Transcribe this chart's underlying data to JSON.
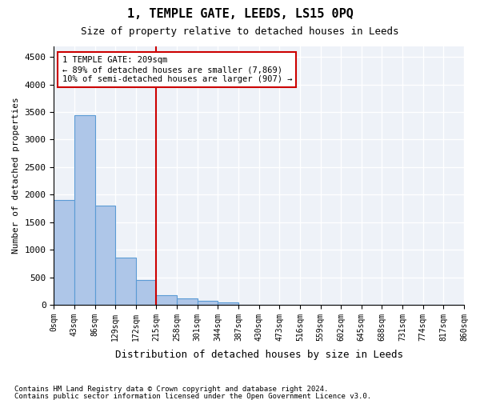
{
  "title": "1, TEMPLE GATE, LEEDS, LS15 0PQ",
  "subtitle": "Size of property relative to detached houses in Leeds",
  "xlabel": "Distribution of detached houses by size in Leeds",
  "ylabel": "Number of detached properties",
  "bar_color": "#aec6e8",
  "bar_edge_color": "#5b9bd5",
  "vline_color": "#cc0000",
  "vline_x": 5,
  "annotation_text": "1 TEMPLE GATE: 209sqm\n← 89% of detached houses are smaller (7,869)\n10% of semi-detached houses are larger (907) →",
  "categories": [
    "0sqm",
    "43sqm",
    "86sqm",
    "129sqm",
    "172sqm",
    "215sqm",
    "258sqm",
    "301sqm",
    "344sqm",
    "387sqm",
    "430sqm",
    "473sqm",
    "516sqm",
    "559sqm",
    "602sqm",
    "645sqm",
    "688sqm",
    "731sqm",
    "774sqm",
    "817sqm",
    "860sqm"
  ],
  "bar_values": [
    1900,
    3450,
    1800,
    850,
    450,
    175,
    110,
    65,
    40,
    0,
    0,
    0,
    0,
    0,
    0,
    0,
    0,
    0,
    0,
    0
  ],
  "ylim": [
    0,
    4700
  ],
  "yticks": [
    0,
    500,
    1000,
    1500,
    2000,
    2500,
    3000,
    3500,
    4000,
    4500
  ],
  "footer_line1": "Contains HM Land Registry data © Crown copyright and database right 2024.",
  "footer_line2": "Contains public sector information licensed under the Open Government Licence v3.0.",
  "background_color": "#eef2f8",
  "grid_color": "#ffffff"
}
